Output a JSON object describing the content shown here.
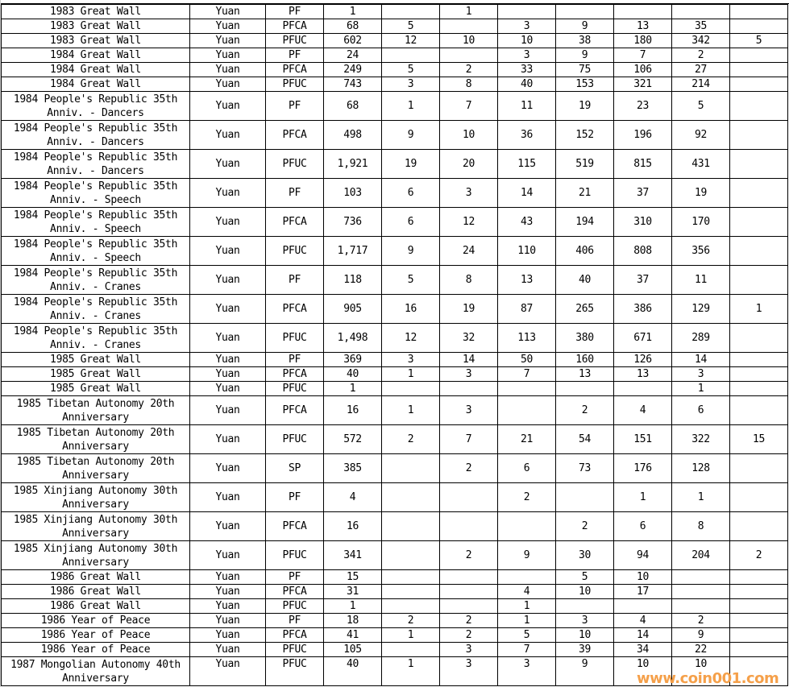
{
  "rows": [
    [
      "1983 Great Wall",
      "Yuan",
      "PF",
      "1",
      "",
      "1",
      "",
      "",
      "",
      "",
      ""
    ],
    [
      "1983 Great Wall",
      "Yuan",
      "PFCA",
      "68",
      "5",
      "",
      "3",
      "9",
      "13",
      "35",
      ""
    ],
    [
      "1983 Great Wall",
      "Yuan",
      "PFUC",
      "602",
      "12",
      "10",
      "10",
      "38",
      "180",
      "342",
      "5"
    ],
    [
      "1984 Great Wall",
      "Yuan",
      "PF",
      "24",
      "",
      "",
      "3",
      "9",
      "7",
      "2",
      ""
    ],
    [
      "1984 Great Wall",
      "Yuan",
      "PFCA",
      "249",
      "5",
      "2",
      "33",
      "75",
      "106",
      "27",
      ""
    ],
    [
      "1984 Great Wall",
      "Yuan",
      "PFUC",
      "743",
      "3",
      "8",
      "40",
      "153",
      "321",
      "214",
      ""
    ],
    [
      "1984 People's Republic 35th Anniv. - Dancers",
      "Yuan",
      "PF",
      "68",
      "1",
      "7",
      "11",
      "19",
      "23",
      "5",
      ""
    ],
    [
      "1984 People's Republic 35th Anniv. - Dancers",
      "Yuan",
      "PFCA",
      "498",
      "9",
      "10",
      "36",
      "152",
      "196",
      "92",
      ""
    ],
    [
      "1984 People's Republic 35th Anniv. - Dancers",
      "Yuan",
      "PFUC",
      "1,921",
      "19",
      "20",
      "115",
      "519",
      "815",
      "431",
      ""
    ],
    [
      "1984 People's Republic 35th Anniv. - Speech",
      "Yuan",
      "PF",
      "103",
      "6",
      "3",
      "14",
      "21",
      "37",
      "19",
      ""
    ],
    [
      "1984 People's Republic 35th Anniv. - Speech",
      "Yuan",
      "PFCA",
      "736",
      "6",
      "12",
      "43",
      "194",
      "310",
      "170",
      ""
    ],
    [
      "1984 People's Republic 35th Anniv. - Speech",
      "Yuan",
      "PFUC",
      "1,717",
      "9",
      "24",
      "110",
      "406",
      "808",
      "356",
      ""
    ],
    [
      "1984 People's Republic 35th Anniv. - Cranes",
      "Yuan",
      "PF",
      "118",
      "5",
      "8",
      "13",
      "40",
      "37",
      "11",
      ""
    ],
    [
      "1984 People's Republic 35th Anniv. - Cranes",
      "Yuan",
      "PFCA",
      "905",
      "16",
      "19",
      "87",
      "265",
      "386",
      "129",
      "1"
    ],
    [
      "1984 People's Republic 35th Anniv. - Cranes",
      "Yuan",
      "PFUC",
      "1,498",
      "12",
      "32",
      "113",
      "380",
      "671",
      "289",
      ""
    ],
    [
      "1985 Great Wall",
      "Yuan",
      "PF",
      "369",
      "3",
      "14",
      "50",
      "160",
      "126",
      "14",
      ""
    ],
    [
      "1985 Great Wall",
      "Yuan",
      "PFCA",
      "40",
      "1",
      "3",
      "7",
      "13",
      "13",
      "3",
      ""
    ],
    [
      "1985 Great Wall",
      "Yuan",
      "PFUC",
      "1",
      "",
      "",
      "",
      "",
      "",
      "1",
      ""
    ],
    [
      "1985 Tibetan Autonomy 20th Anniversary",
      "Yuan",
      "PFCA",
      "16",
      "1",
      "3",
      "",
      "2",
      "4",
      "6",
      ""
    ],
    [
      "1985 Tibetan Autonomy 20th Anniversary",
      "Yuan",
      "PFUC",
      "572",
      "2",
      "7",
      "21",
      "54",
      "151",
      "322",
      "15"
    ],
    [
      "1985 Tibetan Autonomy 20th Anniversary",
      "Yuan",
      "SP",
      "385",
      "",
      "2",
      "6",
      "73",
      "176",
      "128",
      ""
    ],
    [
      "1985 Xinjiang Autonomy 30th Anniversary",
      "Yuan",
      "PF",
      "4",
      "",
      "",
      "2",
      "",
      "1",
      "1",
      ""
    ],
    [
      "1985 Xinjiang Autonomy 30th Anniversary",
      "Yuan",
      "PFCA",
      "16",
      "",
      "",
      "",
      "2",
      "6",
      "8",
      ""
    ],
    [
      "1985 Xinjiang Autonomy 30th Anniversary",
      "Yuan",
      "PFUC",
      "341",
      "",
      "2",
      "9",
      "30",
      "94",
      "204",
      "2"
    ],
    [
      "1986 Great Wall",
      "Yuan",
      "PF",
      "15",
      "",
      "",
      "",
      "5",
      "10",
      "",
      ""
    ],
    [
      "1986 Great Wall",
      "Yuan",
      "PFCA",
      "31",
      "",
      "",
      "4",
      "10",
      "17",
      "",
      ""
    ],
    [
      "1986 Great Wall",
      "Yuan",
      "PFUC",
      "1",
      "",
      "",
      "1",
      "",
      "",
      "",
      ""
    ],
    [
      "1986 Year of Peace",
      "Yuan",
      "PF",
      "18",
      "2",
      "2",
      "1",
      "3",
      "4",
      "2",
      ""
    ],
    [
      "1986 Year of Peace",
      "Yuan",
      "PFCA",
      "41",
      "1",
      "2",
      "5",
      "10",
      "14",
      "9",
      ""
    ],
    [
      "1986 Year of Peace",
      "Yuan",
      "PFUC",
      "105",
      "",
      "3",
      "7",
      "39",
      "34",
      "22",
      ""
    ],
    [
      "1987 Mongolian Autonomy 40th Anniversary",
      "Yuan",
      "PFUC",
      "40",
      "1",
      "3",
      "3",
      "9",
      "10",
      "10",
      ""
    ]
  ],
  "watermark": "www.coin001.com"
}
